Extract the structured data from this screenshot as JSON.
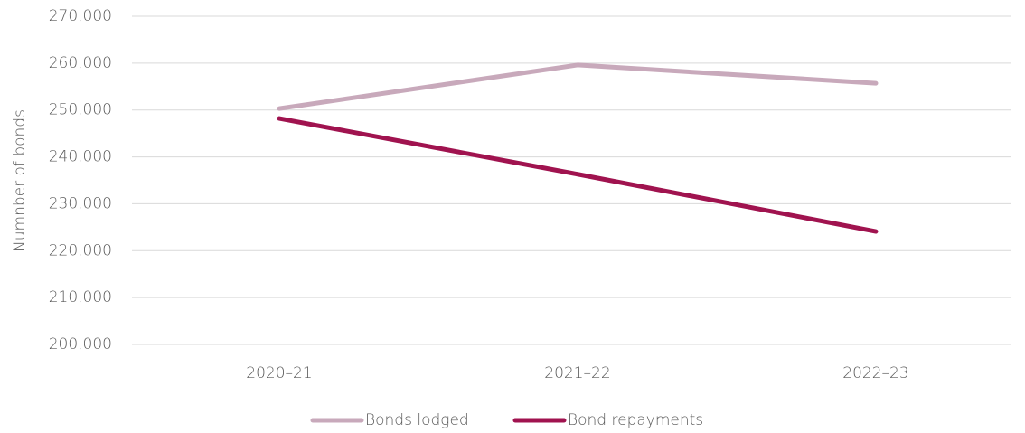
{
  "chart_data": {
    "type": "line",
    "y_axis_label": "Numnber of bonds",
    "categories": [
      "2020–21",
      "2021–22",
      "2022–23"
    ],
    "series": [
      {
        "name": "Bonds lodged",
        "color": "#c8a9bb",
        "values": [
          250300,
          259600,
          255700
        ]
      },
      {
        "name": "Bond repayments",
        "color": "#a0134f",
        "values": [
          248200,
          236300,
          224100
        ]
      }
    ],
    "ylim": [
      200000,
      270000
    ],
    "yticks": [
      {
        "value": 200000,
        "label": "200,000"
      },
      {
        "value": 210000,
        "label": "210,000"
      },
      {
        "value": 220000,
        "label": "220,000"
      },
      {
        "value": 230000,
        "label": "230,000"
      },
      {
        "value": 240000,
        "label": "240,000"
      },
      {
        "value": 250000,
        "label": "250,000"
      },
      {
        "value": 260000,
        "label": "260,000"
      },
      {
        "value": 270000,
        "label": "270,000"
      }
    ],
    "grid": true,
    "legend": "bottom"
  }
}
